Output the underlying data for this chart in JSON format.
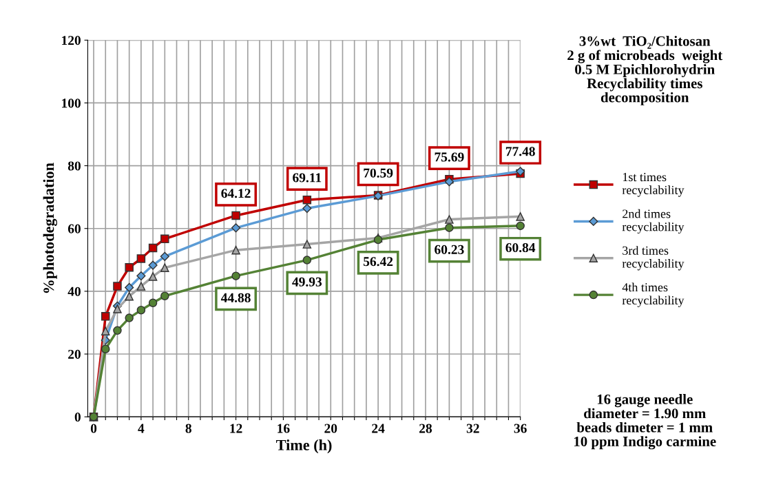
{
  "chart_data": {
    "type": "line",
    "xlabel": "Time (h)",
    "ylabel": "%photodegradation",
    "x": [
      0,
      1,
      2,
      3,
      4,
      5,
      6,
      12,
      18,
      24,
      30,
      36
    ],
    "series": [
      {
        "name": "1st times\nrecyclability",
        "color": "#c00000",
        "marker": "square",
        "values": [
          0,
          32.0,
          41.6,
          47.6,
          50.4,
          53.8,
          56.7,
          64.12,
          69.11,
          70.59,
          75.69,
          77.48
        ],
        "value_labels": [
          null,
          null,
          null,
          null,
          null,
          null,
          null,
          "64.12",
          "69.11",
          "70.59",
          "75.69",
          "77.48"
        ]
      },
      {
        "name": "2nd times\nrecyclability",
        "color": "#5b9bd5",
        "marker": "diamond",
        "values": [
          0,
          24.4,
          35.3,
          41.2,
          44.9,
          48.3,
          51.1,
          60.2,
          66.4,
          70.4,
          74.9,
          78.2
        ]
      },
      {
        "name": "3rd times\nrecyclability",
        "color": "#a5a5a5",
        "marker": "triangle",
        "values": [
          0,
          27.3,
          34.4,
          38.4,
          41.6,
          44.7,
          47.5,
          53.1,
          55.0,
          57.0,
          62.9,
          63.8
        ]
      },
      {
        "name": "4th times\nrecyclability",
        "color": "#548235",
        "marker": "circle",
        "values": [
          0,
          21.6,
          27.5,
          31.5,
          34.0,
          36.3,
          38.5,
          44.88,
          49.93,
          56.42,
          60.23,
          60.84
        ],
        "value_labels": [
          null,
          null,
          null,
          null,
          null,
          null,
          null,
          "44.88",
          "49.93",
          "56.42",
          "60.23",
          "60.84"
        ]
      }
    ],
    "xlim": [
      -0.5,
      36
    ],
    "xticks": [
      0,
      {
        "value": 1,
        "label": null
      },
      {
        "value": 2,
        "label": null
      },
      {
        "value": 3,
        "label": null
      },
      4,
      {
        "value": 5,
        "label": null
      },
      {
        "value": 6,
        "label": null
      },
      {
        "value": 7,
        "label": null
      },
      8,
      {
        "value": 9,
        "label": null
      },
      {
        "value": 10,
        "label": null
      },
      {
        "value": 11,
        "label": null
      },
      12,
      {
        "value": 13,
        "label": null
      },
      {
        "value": 14,
        "label": null
      },
      {
        "value": 15,
        "label": null
      },
      16,
      {
        "value": 17,
        "label": null
      },
      {
        "value": 18,
        "label": null
      },
      {
        "value": 19,
        "label": null
      },
      20,
      {
        "value": 21,
        "label": null
      },
      {
        "value": 22,
        "label": null
      },
      {
        "value": 23,
        "label": null
      },
      24,
      {
        "value": 25,
        "label": null
      },
      {
        "value": 26,
        "label": null
      },
      {
        "value": 27,
        "label": null
      },
      28,
      {
        "value": 29,
        "label": null
      },
      {
        "value": 30,
        "label": null
      },
      {
        "value": 31,
        "label": null
      },
      32,
      {
        "value": 33,
        "label": null
      },
      {
        "value": 34,
        "label": null
      },
      {
        "value": 35,
        "label": null
      },
      36
    ],
    "ylim": [
      0,
      120
    ],
    "yticks": [
      0,
      20,
      40,
      60,
      80,
      100,
      120
    ],
    "grid": true,
    "legend": "right",
    "line_style": "solid",
    "annotations": [
      "3%wt  TiO₂/Chitosan\n2 g of microbeads  weight\n0.5 M Epichlorohydrin\nRecyclability times\ndecomposition",
      "16 gauge needle\ndiameter = 1.90 mm\nbeads dimeter = 1 mm\n10 ppm Indigo carmine"
    ]
  }
}
